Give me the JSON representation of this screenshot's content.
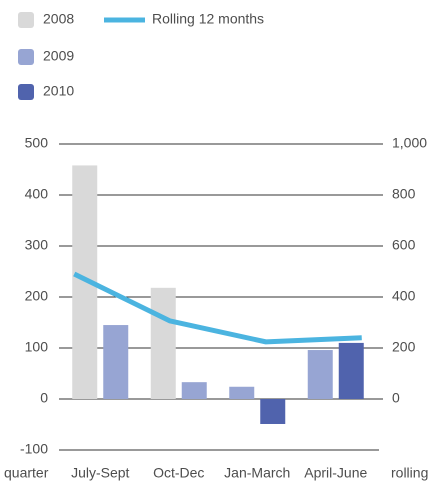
{
  "chart_data": {
    "type": "bar",
    "x_label": "quarter",
    "y2_label": "rolling",
    "categories": [
      "July-Sept",
      "Oct-Dec",
      "Jan-March",
      "April-June"
    ],
    "series": [
      {
        "name": "2008",
        "color": "#d9d9d9",
        "values": [
          458,
          218,
          null,
          null
        ]
      },
      {
        "name": "2009",
        "color": "#97a5d3",
        "values": [
          145,
          33,
          24,
          96
        ]
      },
      {
        "name": "2010",
        "color": "#5063ad",
        "values": [
          null,
          null,
          -49,
          110
        ]
      },
      {
        "name": "Rolling 12 months",
        "color": "#4bb4e0",
        "type": "line",
        "axis": "y2",
        "values": [
          490,
          306,
          224,
          240
        ]
      }
    ],
    "ylim": [
      -100,
      500
    ],
    "yticks": [
      -100,
      0,
      100,
      200,
      300,
      400,
      500
    ],
    "y2lim": [
      -200,
      1000
    ],
    "y2ticks": [
      0,
      200,
      400,
      600,
      800,
      {
        "value": 1000,
        "label": "1,000"
      }
    ],
    "grid": true
  }
}
